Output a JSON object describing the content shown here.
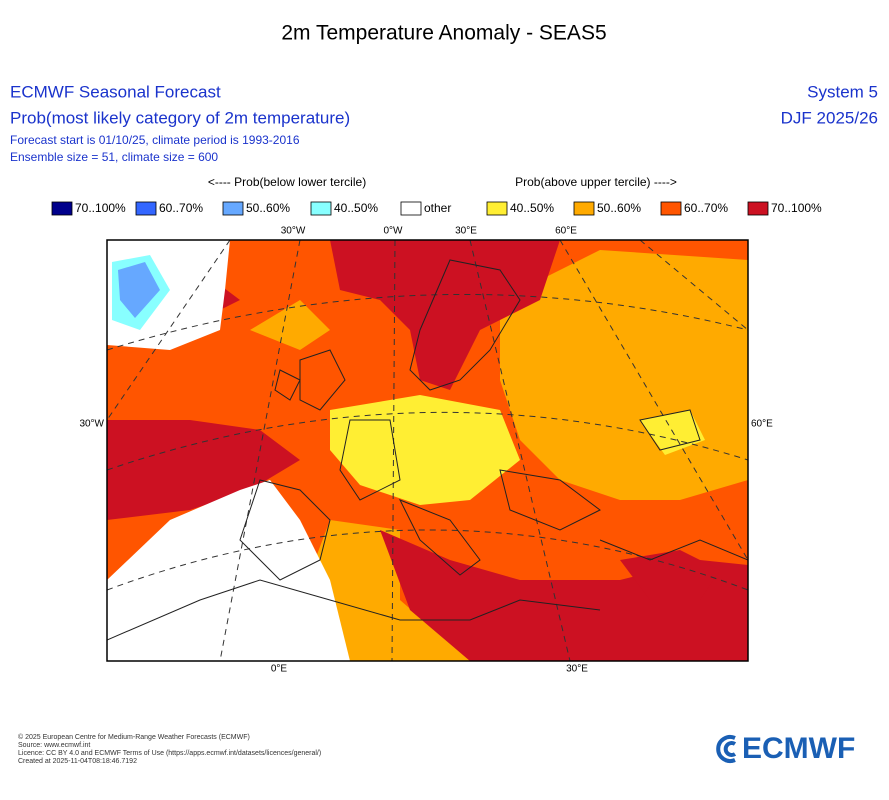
{
  "title": "2m Temperature Anomaly - SEAS5",
  "header": {
    "product": "ECMWF Seasonal Forecast",
    "subtitle": "Prob(most likely category of 2m temperature)",
    "forecast_info": "Forecast start is 01/10/25, climate period is 1993-2016",
    "ensemble_info": "Ensemble size = 51, climate size = 600",
    "system": "System 5",
    "period": "DJF 2025/26"
  },
  "legend": {
    "below_label": "<---- Prob(below lower tercile)",
    "above_label": "Prob(above upper tercile) ---->",
    "items": [
      {
        "label": "70..100%",
        "color": "#00008b"
      },
      {
        "label": "60..70%",
        "color": "#3366ff"
      },
      {
        "label": "50..60%",
        "color": "#66a8ff"
      },
      {
        "label": "40..50%",
        "color": "#88ffff"
      },
      {
        "label": "other",
        "color": "#ffffff"
      },
      {
        "label": "40..50%",
        "color": "#ffee33"
      },
      {
        "label": "50..60%",
        "color": "#ffaa00"
      },
      {
        "label": "60..70%",
        "color": "#ff5500"
      },
      {
        "label": "70..100%",
        "color": "#cc1122"
      }
    ]
  },
  "map": {
    "labels": {
      "top": [
        "30°W",
        "0°W",
        "30°E",
        "60°E"
      ],
      "left": "30°W",
      "right": "60°E",
      "bottom": [
        "0°E",
        "30°E"
      ]
    }
  },
  "footer": {
    "lines": [
      "© 2025 European Centre for Medium-Range Weather Forecasts (ECMWF)",
      "Source: www.ecmwf.int",
      "Licence: CC BY 4.0 and ECMWF Terms of Use (https://apps.ecmwf.int/datasets/licences/general/)",
      "Created at 2025-11-04T08:18:46.7192"
    ],
    "logo": "ECMWF"
  }
}
